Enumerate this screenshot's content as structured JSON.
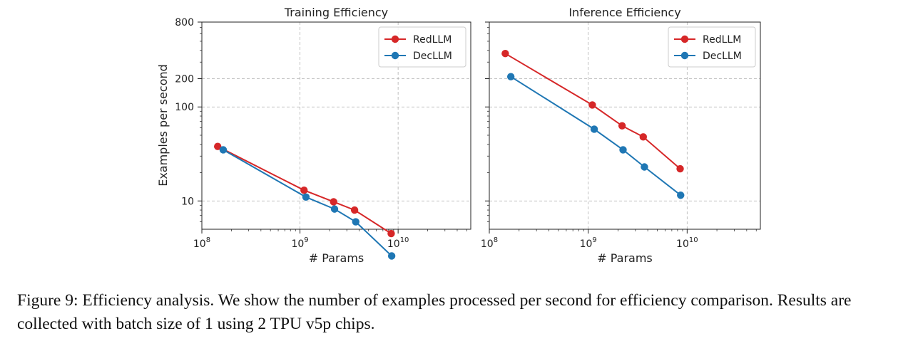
{
  "figure": {
    "ylabel": "Examples per second",
    "caption": "Figure 9:  Efficiency analysis. We show the number of examples processed per second for efficiency comparison. Results are collected with batch size of 1 using 2 TPU v5p chips."
  },
  "chart_data": [
    {
      "type": "line",
      "title": "Training Efficiency",
      "xlabel": "# Params",
      "ylabel": "Examples per second",
      "xscale": "log",
      "yscale": "log",
      "xlim": [
        100000000.0,
        55000000000.0
      ],
      "ylim": [
        5,
        800
      ],
      "xticks": [
        {
          "value": 100000000.0,
          "base": "10",
          "exp": "8"
        },
        {
          "value": 1000000000.0,
          "base": "10",
          "exp": "9"
        },
        {
          "value": 10000000000.0,
          "base": "10",
          "exp": "10"
        }
      ],
      "yticks": [
        {
          "value": 10,
          "label": "10"
        },
        {
          "value": 100,
          "label": "100"
        },
        {
          "value": 200,
          "label": "200"
        },
        {
          "value": 800,
          "label": "800"
        }
      ],
      "grid": true,
      "legend": "top-right",
      "series": [
        {
          "name": "RedLLM",
          "color": "#d62728",
          "x": [
            145000000.0,
            1100000000.0,
            2200000000.0,
            3600000000.0,
            8500000000.0
          ],
          "y": [
            38,
            13,
            9.8,
            8.0,
            4.5
          ]
        },
        {
          "name": "DecLLM",
          "color": "#1f77b4",
          "x": [
            165000000.0,
            1150000000.0,
            2250000000.0,
            3700000000.0,
            8600000000.0
          ],
          "y": [
            35,
            11,
            8.2,
            6.0,
            2.6
          ]
        }
      ]
    },
    {
      "type": "line",
      "title": "Inference Efficiency",
      "xlabel": "# Params",
      "xscale": "log",
      "yscale": "log",
      "xlim": [
        100000000.0,
        55000000000.0
      ],
      "ylim": [
        5,
        800
      ],
      "xticks": [
        {
          "value": 100000000.0,
          "base": "10",
          "exp": "8"
        },
        {
          "value": 1000000000.0,
          "base": "10",
          "exp": "9"
        },
        {
          "value": 10000000000.0,
          "base": "10",
          "exp": "10"
        }
      ],
      "grid": true,
      "legend": "top-right",
      "series": [
        {
          "name": "RedLLM",
          "color": "#d62728",
          "x": [
            145000000.0,
            1100000000.0,
            2200000000.0,
            3600000000.0,
            8500000000.0
          ],
          "y": [
            370,
            105,
            63,
            48,
            22
          ]
        },
        {
          "name": "DecLLM",
          "color": "#1f77b4",
          "x": [
            165000000.0,
            1150000000.0,
            2250000000.0,
            3700000000.0,
            8600000000.0
          ],
          "y": [
            210,
            58,
            35,
            23,
            11.5
          ]
        }
      ]
    }
  ]
}
